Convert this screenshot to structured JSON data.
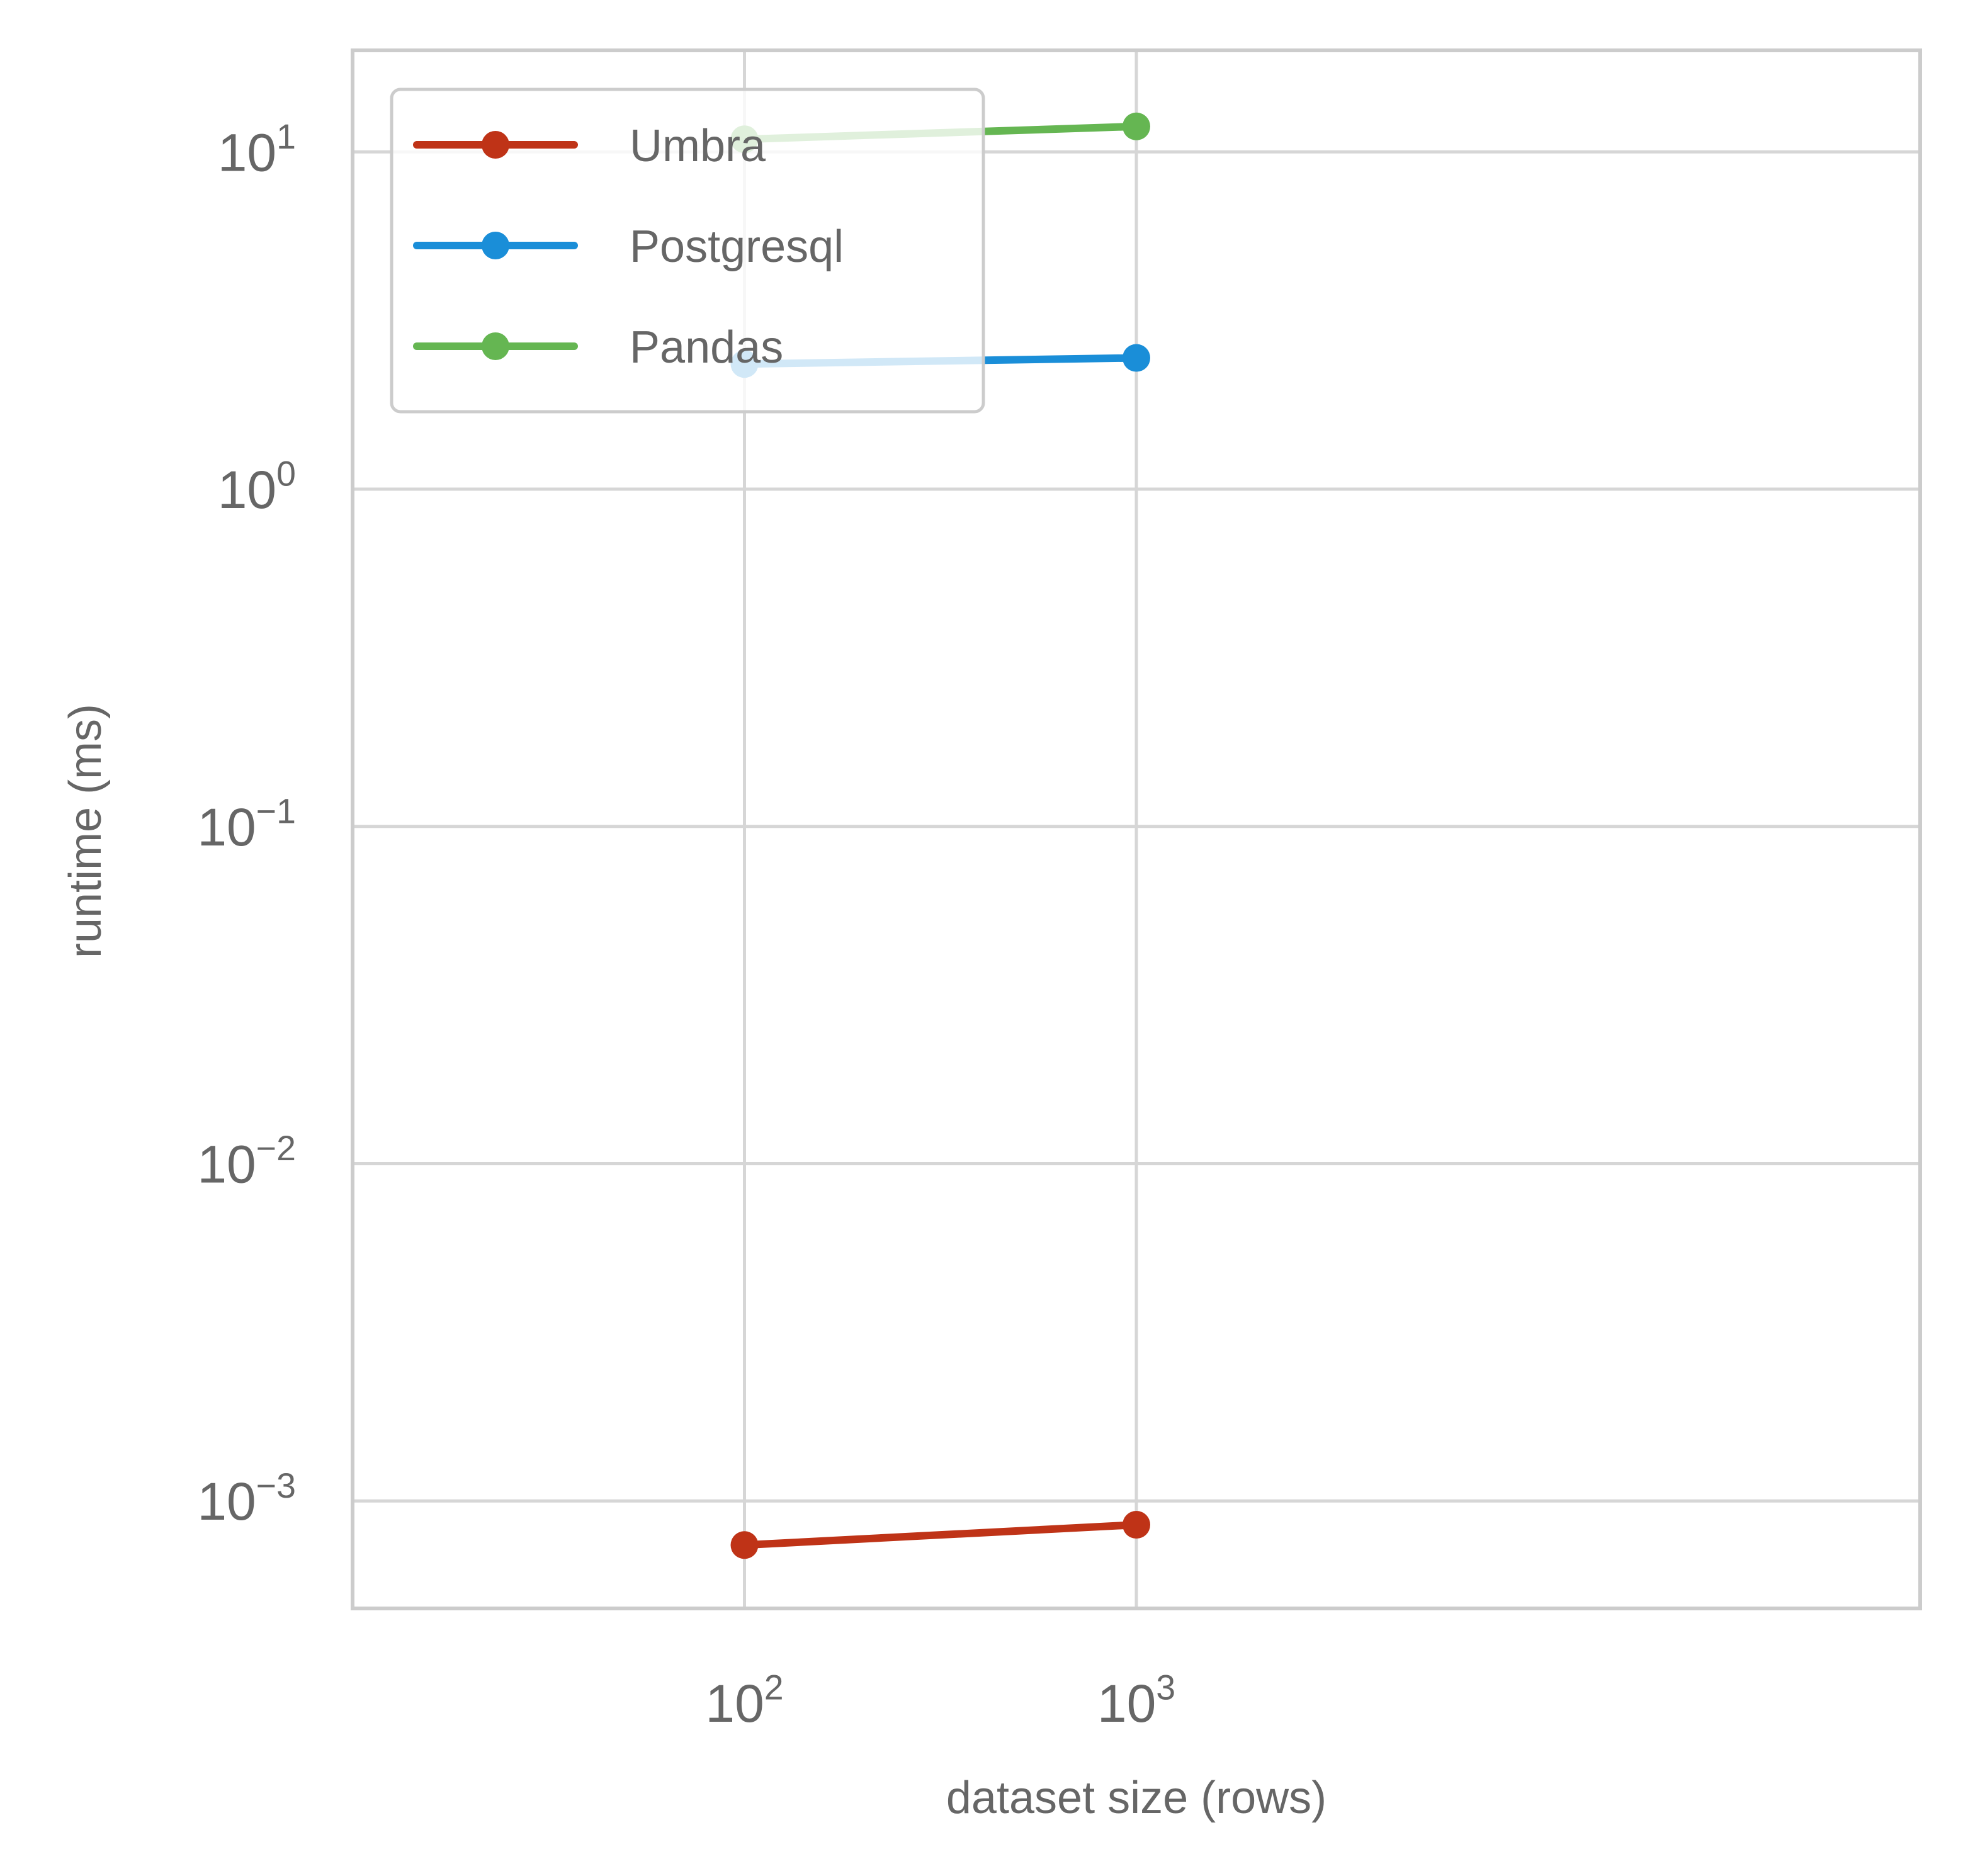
{
  "chart_data": {
    "type": "line",
    "title": "",
    "xlabel": "dataset size (rows)",
    "ylabel": "runtime (ms)",
    "x_scale": "log",
    "y_scale": "log",
    "xlim": [
      10,
      100000
    ],
    "ylim": [
      0.00048,
      20
    ],
    "x_ticks": [
      {
        "value": 100,
        "base": "10",
        "exp": "2"
      },
      {
        "value": 1000,
        "base": "10",
        "exp": "3"
      }
    ],
    "y_ticks": [
      {
        "value": 10,
        "base": "10",
        "exp": "1"
      },
      {
        "value": 1,
        "base": "10",
        "exp": "0"
      },
      {
        "value": 0.1,
        "base": "10",
        "exp": "−1"
      },
      {
        "value": 0.01,
        "base": "10",
        "exp": "−2"
      },
      {
        "value": 0.001,
        "base": "10",
        "exp": "−3"
      }
    ],
    "grid": true,
    "legend_position": "top-left",
    "x": [
      100,
      1000
    ],
    "series": [
      {
        "name": "Umbra",
        "color": "#bf3317",
        "values": [
          0.00074,
          0.00085
        ]
      },
      {
        "name": "Postgresql",
        "color": "#1a8ed8",
        "values": [
          2.35,
          2.45
        ]
      },
      {
        "name": "Pandas",
        "color": "#65b652",
        "values": [
          10.9,
          11.9
        ]
      }
    ]
  }
}
